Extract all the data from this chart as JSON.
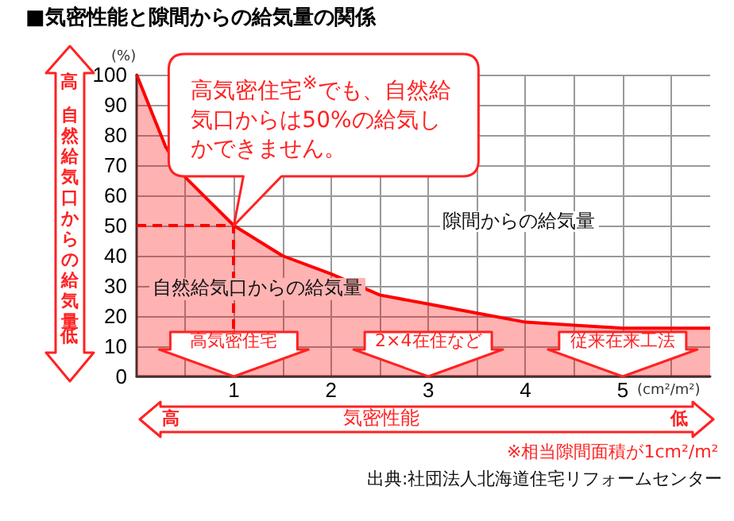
{
  "chart_data": {
    "type": "area",
    "title": "■気密性能と隙間からの給気量の関係",
    "xlabel": "気密性能",
    "ylabel": "自然給気口からの給気量",
    "x": [
      0,
      0.3,
      0.5,
      0.75,
      1,
      1.5,
      2,
      2.5,
      3,
      3.5,
      4,
      4.5,
      5,
      5.9
    ],
    "series": [
      {
        "color": "#ff0000",
        "values": [
          100,
          76,
          66,
          58,
          50,
          40,
          34,
          27,
          24,
          21,
          18,
          17,
          16,
          16
        ]
      }
    ],
    "xlim": [
      0,
      5.9
    ],
    "xticks": [
      {
        "value": 0.5,
        "label": null
      },
      1,
      {
        "value": 1.5,
        "label": null
      },
      2,
      {
        "value": 2.5,
        "label": null
      },
      3,
      {
        "value": 3.5,
        "label": null
      },
      4,
      {
        "value": 4.5,
        "label": null
      },
      5,
      {
        "value": 5.5,
        "label": null
      }
    ],
    "ylim": [
      0,
      100
    ],
    "yticks": [
      0,
      10,
      20,
      30,
      40,
      50,
      60,
      70,
      80,
      90,
      100
    ],
    "grid": true,
    "ref_lines": [
      {
        "axis": "y",
        "value": 50,
        "color": "#ff0000",
        "line_style": "dashed"
      },
      {
        "axis": "x",
        "value": 1,
        "color": "#ff0000",
        "line_style": "dashed"
      }
    ],
    "annotations": [
      "(%)",
      "(cm²/m²)",
      {
        "text": "高気密住宅$^{※}$でも、自然給気口からは50%の給気しかできません。",
        "x": 1,
        "y": 50
      },
      "自然給気口からの給気量",
      "隙間からの給気量",
      {
        "text": "高気密住宅",
        "x": 1,
        "y": 0
      },
      {
        "text": "2×4在住など",
        "x": 3,
        "y": 0
      },
      {
        "text": "従来在来工法",
        "x": 5,
        "y": 0
      },
      "高",
      "低",
      "高",
      "低",
      "※相当隙間面積が1cm²/m²",
      "出典:社団法人北海道住宅リフォームセンター"
    ]
  }
}
